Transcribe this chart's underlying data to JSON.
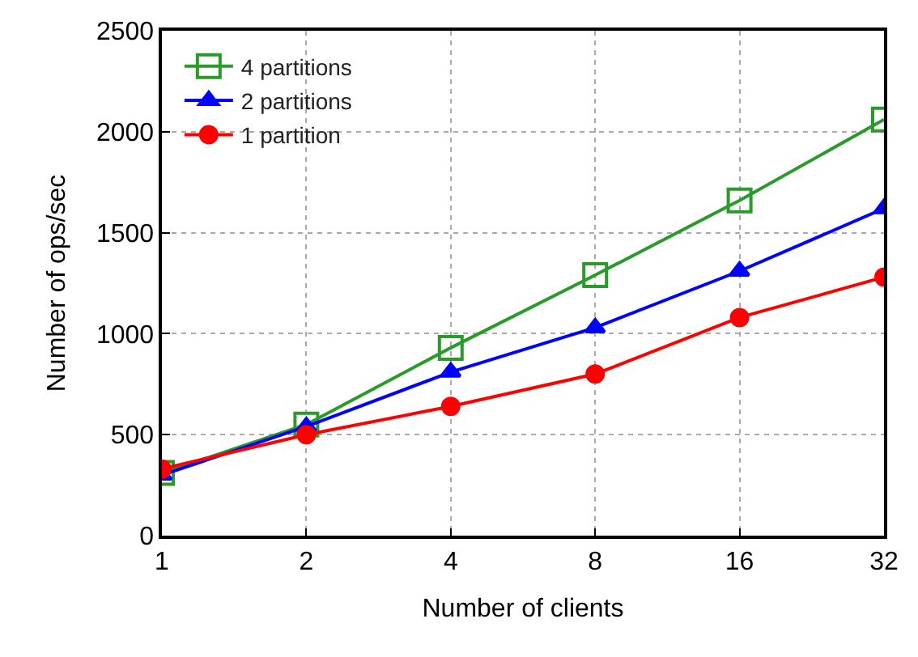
{
  "chart_data": {
    "type": "line",
    "xlabel": "Number of clients",
    "ylabel": "Number of ops/sec",
    "x": [
      1,
      2,
      4,
      8,
      16,
      32
    ],
    "log": "x",
    "xlim": [
      1,
      32
    ],
    "xticks": [
      1,
      2,
      4,
      8,
      16,
      32
    ],
    "ylim": [
      0,
      2500
    ],
    "yticks": [
      0,
      500,
      1000,
      1500,
      2000,
      2500
    ],
    "grid": true,
    "legend": "top left",
    "series": [
      {
        "name": "4 partitions",
        "color": "#2a9a2a",
        "marker": "square",
        "values": [
          310,
          550,
          930,
          1290,
          1660,
          2060
        ]
      },
      {
        "name": "2 partitions",
        "color": "#0000ff",
        "marker": "triangle",
        "values": [
          300,
          540,
          810,
          1030,
          1310,
          1620
        ]
      },
      {
        "name": "1 partition",
        "color": "#ff0000",
        "marker": "circle",
        "values": [
          330,
          500,
          640,
          800,
          1080,
          1280
        ]
      }
    ]
  }
}
